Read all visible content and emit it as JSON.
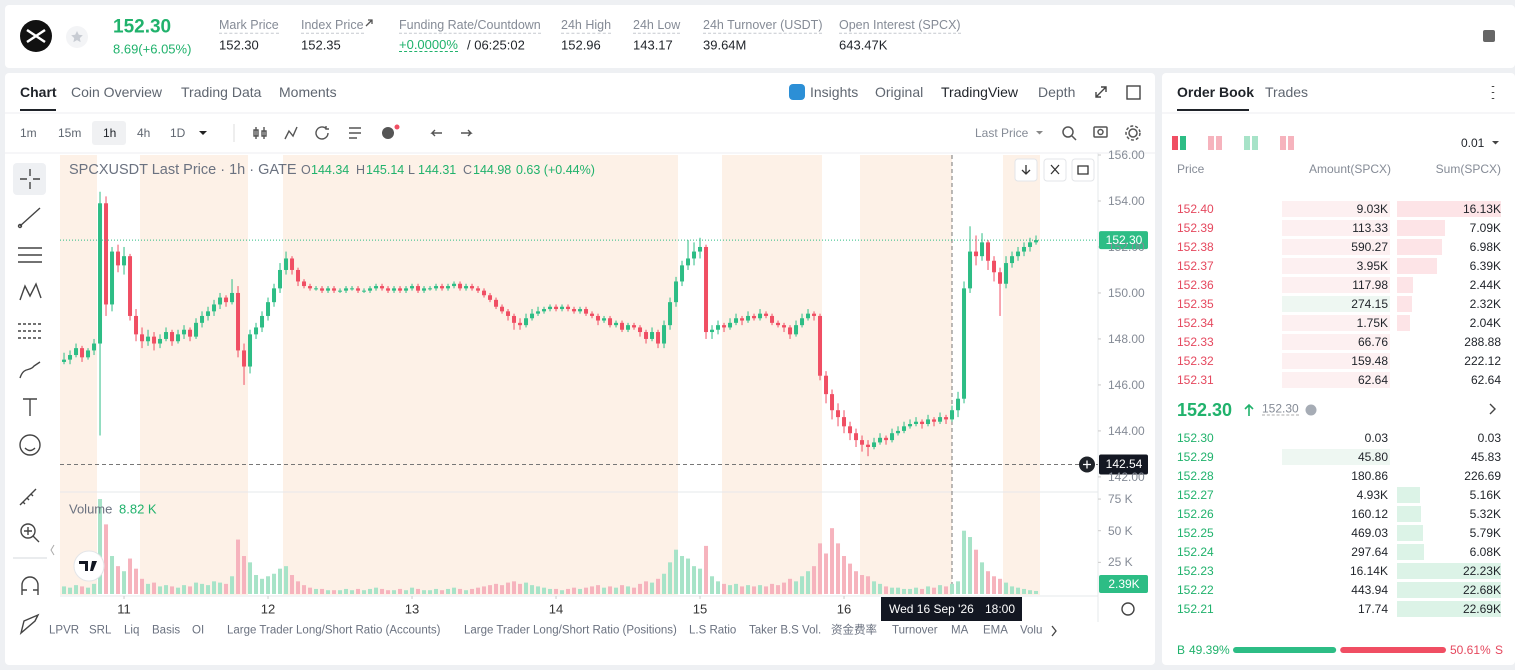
{
  "header": {
    "last_price": "152.30",
    "change": "8.69(+6.05%)",
    "stats": [
      {
        "label": "Mark Price",
        "value": "152.30"
      },
      {
        "label": "Index Price",
        "value": "152.35"
      },
      {
        "label": "Funding Rate/Countdown",
        "value": "+0.0000%",
        "extra": "/ 06:25:02"
      },
      {
        "label": "24h High",
        "value": "152.96"
      },
      {
        "label": "24h Low",
        "value": "143.17"
      },
      {
        "label": "24h Turnover (USDT)",
        "value": "39.64M"
      },
      {
        "label": "Open Interest (SPCX)",
        "value": "643.47K"
      }
    ]
  },
  "tabs": [
    "Chart",
    "Coin Overview",
    "Trading Data",
    "Moments"
  ],
  "views": [
    "Insights",
    "Original",
    "TradingView",
    "Depth"
  ],
  "intervals": [
    "1m",
    "15m",
    "1h",
    "4h",
    "1D"
  ],
  "price_source": "Last Price",
  "indicators": [
    "LPVR",
    "SRL",
    "Liq",
    "Basis",
    "OI",
    "Large Trader Long/Short Ratio (Accounts)",
    "Large Trader Long/Short Ratio (Positions)",
    "L.S Ratio",
    "Taker B.S Vol.",
    "资金费率",
    "Turnover",
    "MA",
    "EMA",
    "Volume"
  ],
  "chart_data": {
    "type": "candlestick",
    "legend_title": "SPCXUSDT Last Price · 1h · GATE",
    "ohlc": [
      {
        "key": "O",
        "value": "144.34"
      },
      {
        "key": "H",
        "value": "145.14"
      },
      {
        "key": "L",
        "value": "144.31"
      },
      {
        "key": "C",
        "value": "144.98"
      }
    ],
    "ohlc_change": "0.63 (+0.44%)",
    "volume_title": "Volume",
    "volume_value": "8.82 K",
    "up_color": "#2dbd85",
    "down_color": "#f04e63",
    "up_volume_color": "#a7e3c8",
    "down_volume_color": "#f6b3bd",
    "xlim": [
      -0.67,
      172.33
    ],
    "xticks": [
      {
        "value": 10,
        "label": "11"
      },
      {
        "value": 34,
        "label": "12"
      },
      {
        "value": 58,
        "label": "13"
      },
      {
        "value": 82,
        "label": "14"
      },
      {
        "value": 106,
        "label": "15"
      },
      {
        "value": 130,
        "label": "16"
      }
    ],
    "ylim": [
      141.43,
      156
    ],
    "yticks": [
      {
        "value": 142,
        "label": "142.00"
      },
      {
        "value": 144,
        "label": "144.00"
      },
      {
        "value": 146,
        "label": "146.00"
      },
      {
        "value": 148,
        "label": "148.00"
      },
      {
        "value": 150,
        "label": "150.00"
      },
      {
        "value": 152,
        "label": "152.00"
      },
      {
        "value": 154,
        "label": "154.00"
      },
      {
        "value": 156,
        "label": "156.00"
      }
    ],
    "volume_ylim": [
      0,
      78.2
    ],
    "volume_yticks": [
      {
        "value": 25,
        "label": "25 K"
      },
      {
        "value": 50,
        "label": "50 K"
      },
      {
        "value": 75,
        "label": "75 K"
      }
    ],
    "last_price_label": "152.30",
    "volume_label": "2.39K",
    "crosshair": {
      "price": 142.54,
      "date": "Wed 16 Sep '26",
      "time": "18:00"
    },
    "candles": [
      [
        147.0,
        147.4,
        146.9,
        147.1,
        6
      ],
      [
        147.1,
        147.5,
        146.9,
        147.3,
        5
      ],
      [
        147.3,
        147.8,
        147.2,
        147.6,
        7
      ],
      [
        147.6,
        147.7,
        147.0,
        147.2,
        6
      ],
      [
        147.2,
        147.6,
        147.1,
        147.5,
        5
      ],
      [
        147.5,
        148.0,
        147.3,
        147.8,
        8
      ],
      [
        147.8,
        154.4,
        143.8,
        153.9,
        75
      ],
      [
        153.9,
        154.2,
        149.0,
        149.5,
        55
      ],
      [
        149.5,
        152.0,
        149.2,
        151.8,
        30
      ],
      [
        151.8,
        152.1,
        150.9,
        151.2,
        22
      ],
      [
        151.2,
        152.0,
        150.8,
        151.6,
        18
      ],
      [
        151.6,
        151.7,
        148.8,
        149.0,
        28
      ],
      [
        149.0,
        149.3,
        147.9,
        148.2,
        20
      ],
      [
        148.2,
        148.5,
        147.6,
        147.9,
        12
      ],
      [
        147.9,
        148.4,
        147.7,
        148.1,
        8
      ],
      [
        148.1,
        148.3,
        147.5,
        147.8,
        9
      ],
      [
        147.8,
        148.2,
        147.6,
        148.0,
        6
      ],
      [
        148.0,
        148.5,
        147.9,
        148.3,
        7
      ],
      [
        148.3,
        148.4,
        147.7,
        147.9,
        6
      ],
      [
        147.9,
        148.4,
        147.8,
        148.2,
        5
      ],
      [
        148.2,
        148.6,
        148.0,
        148.4,
        7
      ],
      [
        148.4,
        148.5,
        147.9,
        148.1,
        6
      ],
      [
        148.1,
        148.9,
        148.0,
        148.7,
        9
      ],
      [
        148.7,
        149.2,
        148.5,
        149.0,
        8
      ],
      [
        149.0,
        149.4,
        148.8,
        149.2,
        7
      ],
      [
        149.2,
        149.7,
        149.0,
        149.5,
        10
      ],
      [
        149.5,
        150.0,
        149.3,
        149.8,
        9
      ],
      [
        149.8,
        149.9,
        149.4,
        149.6,
        8
      ],
      [
        149.6,
        150.6,
        149.5,
        150.0,
        14
      ],
      [
        150.0,
        150.3,
        147.2,
        147.5,
        43
      ],
      [
        147.5,
        147.8,
        146.0,
        146.8,
        30
      ],
      [
        146.8,
        148.4,
        146.5,
        148.2,
        25
      ],
      [
        148.2,
        148.7,
        148.0,
        148.5,
        15
      ],
      [
        148.5,
        149.2,
        148.3,
        149.0,
        12
      ],
      [
        149.0,
        149.8,
        148.8,
        149.6,
        14
      ],
      [
        149.6,
        150.4,
        149.4,
        150.2,
        16
      ],
      [
        150.2,
        151.3,
        150.0,
        151.0,
        20
      ],
      [
        151.0,
        151.8,
        150.8,
        151.5,
        22
      ],
      [
        151.5,
        151.6,
        150.8,
        151.0,
        15
      ],
      [
        151.0,
        151.1,
        150.3,
        150.5,
        10
      ],
      [
        150.5,
        150.6,
        150.2,
        150.3,
        7
      ],
      [
        150.3,
        150.4,
        150.1,
        150.2,
        5
      ],
      [
        150.2,
        150.3,
        150.1,
        150.2,
        4
      ],
      [
        150.2,
        150.3,
        150.0,
        150.1,
        4
      ],
      [
        150.1,
        150.3,
        150.0,
        150.2,
        3
      ],
      [
        150.2,
        150.3,
        150.0,
        150.1,
        3
      ],
      [
        150.1,
        150.2,
        150.0,
        150.1,
        3
      ],
      [
        150.1,
        150.3,
        150.0,
        150.2,
        4
      ],
      [
        150.2,
        150.3,
        150.1,
        150.2,
        3
      ],
      [
        150.2,
        150.3,
        150.0,
        150.1,
        4
      ],
      [
        150.1,
        150.2,
        150.0,
        150.1,
        3
      ],
      [
        150.1,
        150.3,
        150.0,
        150.2,
        4
      ],
      [
        150.2,
        150.4,
        150.1,
        150.3,
        5
      ],
      [
        150.3,
        150.4,
        150.1,
        150.2,
        4
      ],
      [
        150.2,
        150.3,
        150.0,
        150.1,
        3
      ],
      [
        150.1,
        150.3,
        150.0,
        150.2,
        3
      ],
      [
        150.2,
        150.3,
        150.0,
        150.1,
        4
      ],
      [
        150.1,
        150.3,
        150.0,
        150.2,
        3
      ],
      [
        150.2,
        150.4,
        150.1,
        150.3,
        5
      ],
      [
        150.3,
        150.4,
        150.0,
        150.1,
        4
      ],
      [
        150.1,
        150.3,
        150.0,
        150.2,
        3
      ],
      [
        150.2,
        150.3,
        150.1,
        150.2,
        3
      ],
      [
        150.2,
        150.4,
        150.1,
        150.3,
        4
      ],
      [
        150.3,
        150.4,
        150.1,
        150.2,
        3
      ],
      [
        150.2,
        150.4,
        150.1,
        150.3,
        4
      ],
      [
        150.3,
        150.5,
        150.2,
        150.4,
        5
      ],
      [
        150.4,
        150.5,
        150.1,
        150.2,
        4
      ],
      [
        150.2,
        150.4,
        150.1,
        150.3,
        3
      ],
      [
        150.3,
        150.4,
        150.1,
        150.2,
        4
      ],
      [
        150.2,
        150.3,
        150.0,
        150.1,
        5
      ],
      [
        150.1,
        150.2,
        149.8,
        149.9,
        6
      ],
      [
        149.9,
        150.0,
        149.6,
        149.7,
        7
      ],
      [
        149.7,
        149.8,
        149.3,
        149.4,
        8
      ],
      [
        149.4,
        149.5,
        149.1,
        149.2,
        7
      ],
      [
        149.2,
        149.3,
        148.8,
        149.0,
        9
      ],
      [
        149.0,
        149.1,
        148.4,
        148.7,
        10
      ],
      [
        148.7,
        148.9,
        148.4,
        148.6,
        8
      ],
      [
        148.6,
        149.1,
        148.5,
        148.9,
        9
      ],
      [
        148.9,
        149.3,
        148.8,
        149.1,
        7
      ],
      [
        149.1,
        149.4,
        149.0,
        149.2,
        6
      ],
      [
        149.2,
        149.4,
        149.1,
        149.3,
        5
      ],
      [
        149.3,
        149.5,
        149.2,
        149.4,
        4
      ],
      [
        149.4,
        149.5,
        149.2,
        149.3,
        4
      ],
      [
        149.3,
        149.5,
        149.2,
        149.4,
        3
      ],
      [
        149.4,
        149.5,
        149.2,
        149.3,
        4
      ],
      [
        149.3,
        149.4,
        149.1,
        149.2,
        5
      ],
      [
        149.2,
        149.4,
        149.1,
        149.3,
        4
      ],
      [
        149.3,
        149.4,
        149.0,
        149.1,
        5
      ],
      [
        149.1,
        149.2,
        148.9,
        149.0,
        6
      ],
      [
        149.0,
        149.1,
        148.6,
        148.8,
        7
      ],
      [
        148.8,
        149.0,
        148.7,
        148.9,
        5
      ],
      [
        148.9,
        149.0,
        148.5,
        148.6,
        6
      ],
      [
        148.6,
        148.8,
        148.5,
        148.7,
        5
      ],
      [
        148.7,
        148.8,
        148.3,
        148.4,
        7
      ],
      [
        148.4,
        148.7,
        148.3,
        148.6,
        6
      ],
      [
        148.6,
        148.7,
        148.4,
        148.5,
        5
      ],
      [
        148.5,
        148.6,
        148.1,
        148.3,
        8
      ],
      [
        148.3,
        148.4,
        147.8,
        148.0,
        10
      ],
      [
        148.0,
        148.5,
        147.9,
        148.3,
        9
      ],
      [
        148.3,
        148.4,
        147.6,
        147.8,
        12
      ],
      [
        147.8,
        148.8,
        147.6,
        148.6,
        16
      ],
      [
        148.6,
        149.8,
        148.4,
        149.6,
        25
      ],
      [
        149.6,
        150.7,
        149.4,
        150.5,
        35
      ],
      [
        150.5,
        151.4,
        150.3,
        151.2,
        30
      ],
      [
        151.2,
        152.3,
        151.0,
        151.5,
        28
      ],
      [
        151.5,
        152.2,
        151.2,
        151.8,
        22
      ],
      [
        151.8,
        152.4,
        151.5,
        152.0,
        20
      ],
      [
        152.0,
        152.1,
        148.0,
        148.3,
        38
      ],
      [
        148.3,
        148.6,
        148.0,
        148.4,
        14
      ],
      [
        148.4,
        148.8,
        148.2,
        148.6,
        10
      ],
      [
        148.6,
        148.7,
        148.3,
        148.5,
        8
      ],
      [
        148.5,
        148.9,
        148.4,
        148.7,
        7
      ],
      [
        148.7,
        149.1,
        148.6,
        148.9,
        8
      ],
      [
        148.9,
        149.0,
        148.6,
        148.8,
        6
      ],
      [
        148.8,
        149.2,
        148.7,
        149.0,
        7
      ],
      [
        149.0,
        149.1,
        148.8,
        148.9,
        6
      ],
      [
        148.9,
        149.3,
        148.8,
        149.1,
        7
      ],
      [
        149.1,
        149.2,
        148.9,
        149.0,
        6
      ],
      [
        149.0,
        149.1,
        148.6,
        148.7,
        8
      ],
      [
        148.7,
        148.8,
        148.5,
        148.6,
        7
      ],
      [
        148.6,
        148.7,
        148.3,
        148.5,
        9
      ],
      [
        148.5,
        148.6,
        148.0,
        148.2,
        12
      ],
      [
        148.2,
        148.8,
        148.1,
        148.6,
        10
      ],
      [
        148.6,
        149.1,
        148.5,
        148.9,
        14
      ],
      [
        148.9,
        149.3,
        148.8,
        149.1,
        18
      ],
      [
        149.1,
        149.2,
        148.8,
        149.0,
        22
      ],
      [
        149.0,
        149.1,
        146.2,
        146.4,
        40
      ],
      [
        146.4,
        146.6,
        145.2,
        145.6,
        32
      ],
      [
        145.6,
        145.8,
        144.5,
        144.9,
        52
      ],
      [
        144.9,
        145.2,
        144.2,
        144.6,
        40
      ],
      [
        144.6,
        144.9,
        143.9,
        144.2,
        30
      ],
      [
        144.2,
        144.4,
        143.6,
        143.9,
        24
      ],
      [
        143.9,
        144.1,
        143.3,
        143.6,
        18
      ],
      [
        143.6,
        143.8,
        143.1,
        143.4,
        15
      ],
      [
        143.4,
        143.6,
        142.9,
        143.3,
        14
      ],
      [
        143.3,
        143.7,
        143.2,
        143.5,
        10
      ],
      [
        143.5,
        143.9,
        143.4,
        143.7,
        8
      ],
      [
        143.7,
        143.8,
        143.4,
        143.6,
        6
      ],
      [
        143.6,
        144.1,
        143.5,
        143.9,
        5
      ],
      [
        143.9,
        144.2,
        143.8,
        144.0,
        5
      ],
      [
        144.0,
        144.4,
        143.9,
        144.2,
        4
      ],
      [
        144.2,
        144.5,
        144.1,
        144.3,
        4
      ],
      [
        144.3,
        144.6,
        144.2,
        144.4,
        5
      ],
      [
        144.4,
        144.5,
        144.1,
        144.3,
        4
      ],
      [
        144.3,
        144.7,
        144.2,
        144.5,
        6
      ],
      [
        144.5,
        144.6,
        144.2,
        144.4,
        5
      ],
      [
        144.4,
        144.8,
        144.3,
        144.6,
        7
      ],
      [
        144.6,
        144.7,
        144.3,
        144.5,
        6
      ],
      [
        144.5,
        145.1,
        144.4,
        144.9,
        8
      ],
      [
        144.9,
        145.7,
        144.6,
        145.4,
        10
      ],
      [
        145.4,
        150.5,
        145.2,
        150.2,
        50
      ],
      [
        150.2,
        152.9,
        150.0,
        151.8,
        45
      ],
      [
        151.8,
        152.5,
        151.2,
        151.6,
        35
      ],
      [
        151.6,
        152.6,
        151.4,
        152.2,
        25
      ],
      [
        152.2,
        152.3,
        151.0,
        151.4,
        18
      ],
      [
        151.4,
        151.6,
        150.5,
        150.9,
        14
      ],
      [
        150.9,
        151.1,
        149.0,
        150.4,
        12
      ],
      [
        150.4,
        151.6,
        150.2,
        151.3,
        9
      ],
      [
        151.3,
        151.8,
        151.1,
        151.6,
        6
      ],
      [
        151.6,
        152.0,
        151.4,
        151.8,
        5
      ],
      [
        151.8,
        152.2,
        151.6,
        152.0,
        4
      ],
      [
        152.0,
        152.4,
        151.8,
        152.2,
        3
      ],
      [
        152.2,
        152.5,
        152.1,
        152.3,
        2.39
      ]
    ]
  },
  "order_book": {
    "tabs": [
      "Order Book",
      "Trades"
    ],
    "precision": "0.01",
    "columns": [
      "Price",
      "Amount(SPCX)",
      "Sum(SPCX)"
    ],
    "asks": [
      [
        "152.40",
        "9.03K",
        "16.13K"
      ],
      [
        "152.39",
        "113.33",
        "7.09K"
      ],
      [
        "152.38",
        "590.27",
        "6.98K"
      ],
      [
        "152.37",
        "3.95K",
        "6.39K"
      ],
      [
        "152.36",
        "117.98",
        "2.44K"
      ],
      [
        "152.35",
        "274.15",
        "2.32K"
      ],
      [
        "152.34",
        "1.75K",
        "2.04K"
      ],
      [
        "152.33",
        "66.76",
        "288.88"
      ],
      [
        "152.32",
        "159.48",
        "222.12"
      ],
      [
        "152.31",
        "62.64",
        "62.64"
      ]
    ],
    "mid_price": "152.30",
    "mark_price": "152.30",
    "bids": [
      [
        "152.30",
        "0.03",
        "0.03"
      ],
      [
        "152.29",
        "45.80",
        "45.83"
      ],
      [
        "152.28",
        "180.86",
        "226.69"
      ],
      [
        "152.27",
        "4.93K",
        "5.16K"
      ],
      [
        "152.26",
        "160.12",
        "5.32K"
      ],
      [
        "152.25",
        "469.03",
        "5.79K"
      ],
      [
        "152.24",
        "297.64",
        "6.08K"
      ],
      [
        "152.23",
        "16.14K",
        "22.23K"
      ],
      [
        "152.22",
        "443.94",
        "22.68K"
      ],
      [
        "152.21",
        "17.74",
        "22.69K"
      ]
    ],
    "buy_label": "B",
    "buy_pct": 49.39,
    "buy_pct_label": "49.39%",
    "sell_pct": 50.61,
    "sell_pct_label": "50.61%",
    "sell_label": "S"
  }
}
